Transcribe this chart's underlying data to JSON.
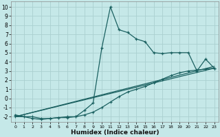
{
  "xlabel": "Humidex (Indice chaleur)",
  "xlim": [
    -0.5,
    23.5
  ],
  "ylim": [
    -2.6,
    10.6
  ],
  "xticks": [
    0,
    1,
    2,
    3,
    4,
    5,
    6,
    7,
    8,
    9,
    10,
    11,
    12,
    13,
    14,
    15,
    16,
    17,
    18,
    19,
    20,
    21,
    22,
    23
  ],
  "yticks": [
    -2,
    -1,
    0,
    1,
    2,
    3,
    4,
    5,
    6,
    7,
    8,
    9,
    10
  ],
  "bg_color": "#c5e8e8",
  "grid_color": "#aad0d0",
  "line_color": "#1a6060",
  "curve1_x": [
    0,
    1,
    2,
    3,
    4,
    5,
    6,
    7,
    8,
    9,
    10,
    11,
    12,
    13,
    14,
    15,
    16,
    17,
    18,
    19,
    20,
    21,
    22,
    23
  ],
  "curve1_y": [
    -1.8,
    -2.0,
    -2.2,
    -2.3,
    -2.2,
    -2.1,
    -2.1,
    -2.0,
    -1.3,
    -0.5,
    5.5,
    10.0,
    7.5,
    7.2,
    6.5,
    6.2,
    5.0,
    4.9,
    5.0,
    5.0,
    5.0,
    3.0,
    4.3,
    3.3
  ],
  "line2_x": [
    0,
    23
  ],
  "line2_y": [
    -2.0,
    3.3
  ],
  "curve3_x": [
    0,
    1,
    2,
    3,
    4,
    5,
    6,
    7,
    8,
    9,
    10,
    11,
    12,
    13,
    14,
    15,
    16,
    17,
    18,
    19,
    20,
    21,
    22,
    23
  ],
  "curve3_y": [
    -2.0,
    -2.0,
    -2.0,
    -2.2,
    -2.2,
    -2.1,
    -2.0,
    -2.0,
    -1.8,
    -1.5,
    -1.0,
    -0.4,
    0.2,
    0.7,
    1.0,
    1.3,
    1.7,
    2.1,
    2.5,
    2.8,
    3.0,
    3.1,
    3.2,
    3.3
  ],
  "line4_x": [
    0,
    23
  ],
  "line4_y": [
    -2.0,
    3.5
  ]
}
